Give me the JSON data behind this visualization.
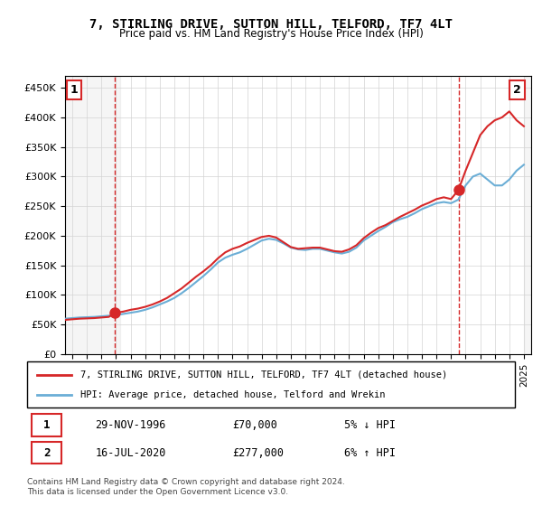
{
  "title": "7, STIRLING DRIVE, SUTTON HILL, TELFORD, TF7 4LT",
  "subtitle": "Price paid vs. HM Land Registry's House Price Index (HPI)",
  "legend_line1": "7, STIRLING DRIVE, SUTTON HILL, TELFORD, TF7 4LT (detached house)",
  "legend_line2": "HPI: Average price, detached house, Telford and Wrekin",
  "annotation1_label": "1",
  "annotation1_date": "29-NOV-1996",
  "annotation1_price": "£70,000",
  "annotation1_hpi": "5% ↓ HPI",
  "annotation2_label": "2",
  "annotation2_date": "16-JUL-2020",
  "annotation2_price": "£277,000",
  "annotation2_hpi": "6% ↑ HPI",
  "footer": "Contains HM Land Registry data © Crown copyright and database right 2024.\nThis data is licensed under the Open Government Licence v3.0.",
  "hpi_color": "#6baed6",
  "price_color": "#d62728",
  "marker1_x": 1996.92,
  "marker1_y": 70000,
  "marker2_x": 2020.54,
  "marker2_y": 277000,
  "vline1_x": 1996.92,
  "vline2_x": 2020.54,
  "ylim": [
    0,
    470000
  ],
  "xlim_left": 1993.5,
  "xlim_right": 2025.5,
  "yticks": [
    0,
    50000,
    100000,
    150000,
    200000,
    250000,
    300000,
    350000,
    400000,
    450000
  ],
  "xticks": [
    1994,
    1995,
    1996,
    1997,
    1998,
    1999,
    2000,
    2001,
    2002,
    2003,
    2004,
    2005,
    2006,
    2007,
    2008,
    2009,
    2010,
    2011,
    2012,
    2013,
    2014,
    2015,
    2016,
    2017,
    2018,
    2019,
    2020,
    2021,
    2022,
    2023,
    2024,
    2025
  ],
  "hpi_x": [
    1993.5,
    1994,
    1994.5,
    1995,
    1995.5,
    1996,
    1996.5,
    1997,
    1997.5,
    1998,
    1998.5,
    1999,
    1999.5,
    2000,
    2000.5,
    2001,
    2001.5,
    2002,
    2002.5,
    2003,
    2003.5,
    2004,
    2004.5,
    2005,
    2005.5,
    2006,
    2006.5,
    2007,
    2007.5,
    2008,
    2008.5,
    2009,
    2009.5,
    2010,
    2010.5,
    2011,
    2011.5,
    2012,
    2012.5,
    2013,
    2013.5,
    2014,
    2014.5,
    2015,
    2015.5,
    2016,
    2016.5,
    2017,
    2017.5,
    2018,
    2018.5,
    2019,
    2019.5,
    2020,
    2020.5,
    2021,
    2021.5,
    2022,
    2022.5,
    2023,
    2023.5,
    2024,
    2024.5,
    2025
  ],
  "hpi_y": [
    60000,
    61000,
    62000,
    62500,
    63000,
    64000,
    65000,
    66000,
    68000,
    70000,
    72000,
    75000,
    79000,
    84000,
    89000,
    95000,
    103000,
    112000,
    122000,
    132000,
    143000,
    155000,
    163000,
    168000,
    172000,
    178000,
    185000,
    192000,
    195000,
    193000,
    187000,
    180000,
    177000,
    176000,
    178000,
    178000,
    175000,
    172000,
    170000,
    173000,
    180000,
    192000,
    200000,
    208000,
    215000,
    223000,
    228000,
    232000,
    238000,
    245000,
    250000,
    255000,
    257000,
    255000,
    261000,
    285000,
    300000,
    305000,
    295000,
    285000,
    285000,
    295000,
    310000,
    320000
  ],
  "price_x": [
    1993.5,
    1994,
    1994.5,
    1995,
    1995.5,
    1996,
    1996.5,
    1997,
    1997.5,
    1998,
    1998.5,
    1999,
    1999.5,
    2000,
    2000.5,
    2001,
    2001.5,
    2002,
    2002.5,
    2003,
    2003.5,
    2004,
    2004.5,
    2005,
    2005.5,
    2006,
    2006.5,
    2007,
    2007.5,
    2008,
    2008.5,
    2009,
    2009.5,
    2010,
    2010.5,
    2011,
    2011.5,
    2012,
    2012.5,
    2013,
    2013.5,
    2014,
    2014.5,
    2015,
    2015.5,
    2016,
    2016.5,
    2017,
    2017.5,
    2018,
    2018.5,
    2019,
    2019.5,
    2020,
    2020.5,
    2021,
    2021.5,
    2022,
    2022.5,
    2023,
    2023.5,
    2024,
    2024.5,
    2025
  ],
  "price_y": [
    58000,
    59000,
    60000,
    60500,
    61000,
    62000,
    63000,
    70000,
    72000,
    75000,
    77000,
    80000,
    84000,
    89000,
    95000,
    103000,
    111000,
    121000,
    131000,
    140000,
    150000,
    162000,
    172000,
    178000,
    182000,
    188000,
    193000,
    198000,
    200000,
    197000,
    189000,
    181000,
    178000,
    179000,
    180000,
    180000,
    177000,
    174000,
    173000,
    177000,
    184000,
    196000,
    205000,
    213000,
    218000,
    225000,
    232000,
    238000,
    244000,
    251000,
    256000,
    262000,
    265000,
    262000,
    277000,
    310000,
    340000,
    370000,
    385000,
    395000,
    400000,
    410000,
    395000,
    385000
  ]
}
